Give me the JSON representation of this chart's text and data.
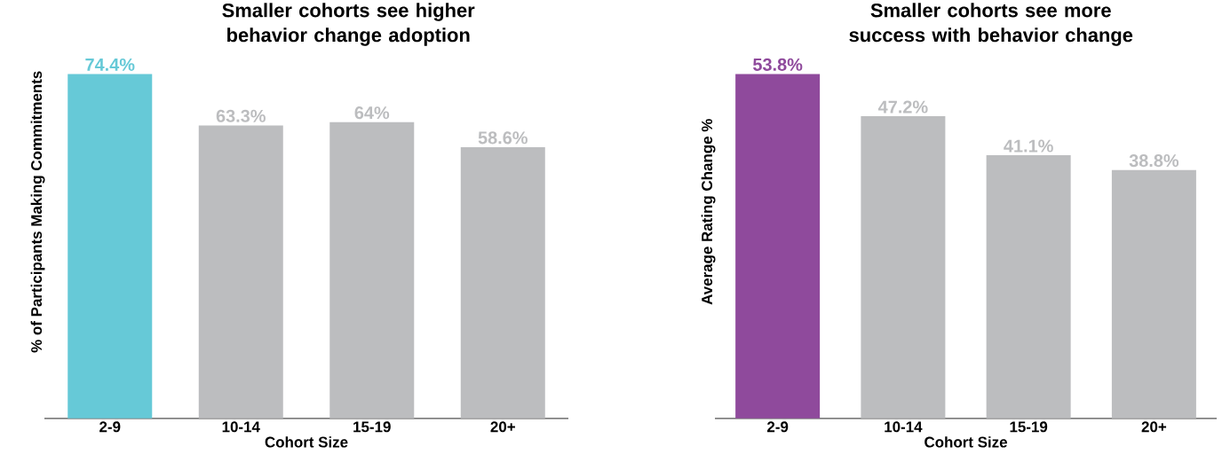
{
  "chart_data": [
    {
      "type": "bar",
      "title": "Smaller cohorts see higher behavior change adoption",
      "xlabel": "Cohort Size",
      "ylabel": "% of Participants Making Commitments",
      "categories": [
        "2-9",
        "10-14",
        "15-19",
        "20+"
      ],
      "values": [
        74.4,
        63.3,
        64,
        58.6
      ],
      "value_labels": [
        "74.4%",
        "63.3%",
        "64%",
        "58.6%"
      ],
      "colors": [
        "#66c9d7",
        "#bcbdbf",
        "#bcbdbf",
        "#bcbdbf"
      ]
    },
    {
      "type": "bar",
      "title": "Smaller cohorts see more success with behavior change",
      "xlabel": "Cohort Size",
      "ylabel": "Average Rating Change %",
      "categories": [
        "2-9",
        "10-14",
        "15-19",
        "20+"
      ],
      "values": [
        53.8,
        47.2,
        41.1,
        38.8
      ],
      "value_labels": [
        "53.8%",
        "47.2%",
        "41.1%",
        "38.8%"
      ],
      "colors": [
        "#8f4a9c",
        "#bcbdbf",
        "#bcbdbf",
        "#bcbdbf"
      ]
    }
  ]
}
